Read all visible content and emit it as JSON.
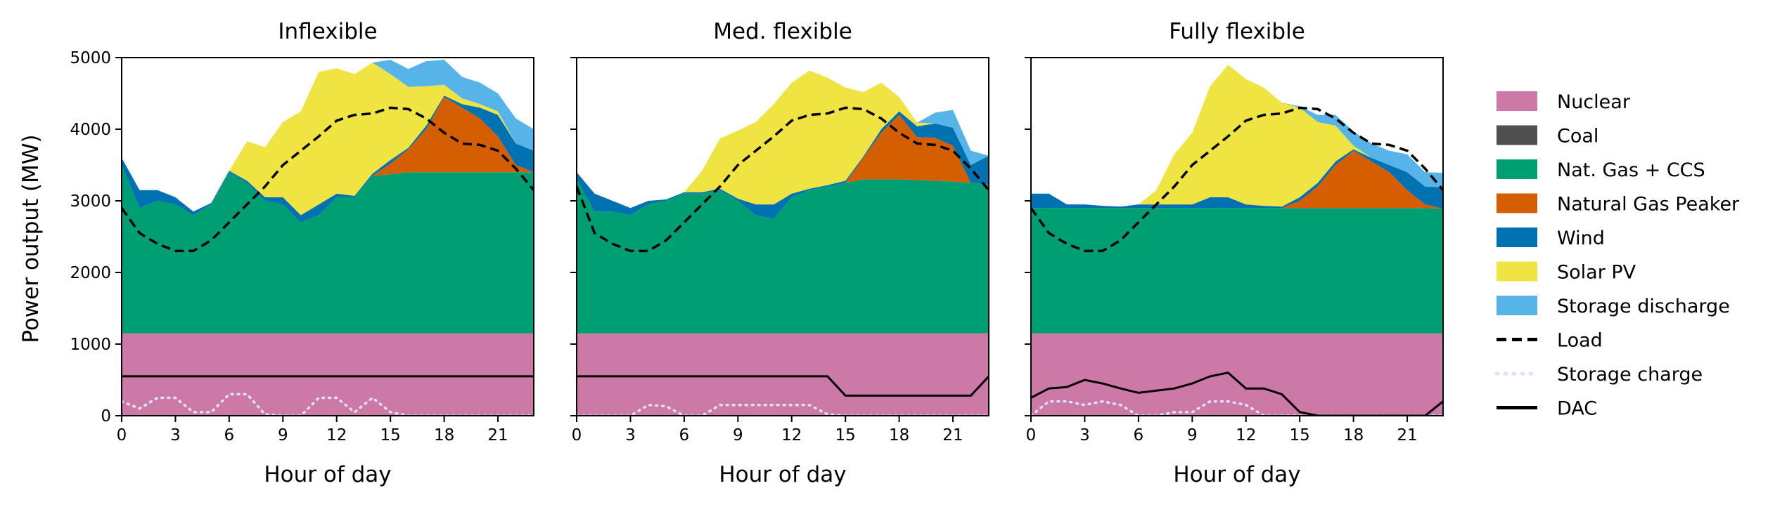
{
  "colors": {
    "nuclear": "#cc79a7",
    "coal": "#505050",
    "gas_ccs": "#009e73",
    "gas_peaker": "#d55e00",
    "wind": "#0072b2",
    "solar": "#f0e442",
    "storage_discharge": "#56b4e9",
    "storage_charge": "#e0e0f8",
    "load": "#000000",
    "dac": "#000000"
  },
  "chart_data": [
    {
      "type": "area",
      "title": "Inflexible",
      "xlabel": "Hour of day",
      "ylabel": "Power output (MW)",
      "xlim": [
        0,
        23
      ],
      "ylim": [
        0,
        5000
      ],
      "xticks": [
        "0",
        "3",
        "6",
        "9",
        "12",
        "15",
        "18",
        "21"
      ],
      "yticks": [
        "0",
        "1000",
        "2000",
        "3000",
        "4000",
        "5000"
      ],
      "x": [
        0,
        1,
        2,
        3,
        4,
        5,
        6,
        7,
        8,
        9,
        10,
        11,
        12,
        13,
        14,
        15,
        16,
        17,
        18,
        19,
        20,
        21,
        22,
        23
      ],
      "series": [
        {
          "name": "Nuclear",
          "values": [
            1150,
            1150,
            1150,
            1150,
            1150,
            1150,
            1150,
            1150,
            1150,
            1150,
            1150,
            1150,
            1150,
            1150,
            1150,
            1150,
            1150,
            1150,
            1150,
            1150,
            1150,
            1150,
            1150,
            1150
          ]
        },
        {
          "name": "Coal",
          "values": [
            0,
            0,
            0,
            0,
            0,
            0,
            0,
            0,
            0,
            0,
            0,
            0,
            0,
            0,
            0,
            0,
            0,
            0,
            0,
            0,
            0,
            0,
            0,
            0
          ]
        },
        {
          "name": "Nat. Gas + CCS",
          "values": [
            2350,
            1750,
            1850,
            1800,
            1650,
            1800,
            2250,
            2100,
            1850,
            1800,
            1550,
            1650,
            1900,
            1900,
            2200,
            2220,
            2250,
            2250,
            2250,
            2250,
            2250,
            2250,
            2250,
            2250
          ]
        },
        {
          "name": "Natural Gas Peaker",
          "values": [
            0,
            0,
            0,
            0,
            0,
            0,
            0,
            0,
            0,
            0,
            0,
            0,
            0,
            0,
            0,
            150,
            320,
            600,
            1050,
            900,
            750,
            500,
            100,
            0
          ]
        },
        {
          "name": "Wind",
          "values": [
            100,
            250,
            150,
            100,
            50,
            20,
            20,
            30,
            50,
            100,
            100,
            150,
            50,
            20,
            30,
            50,
            20,
            50,
            20,
            50,
            150,
            300,
            300,
            300
          ]
        },
        {
          "name": "Solar PV",
          "values": [
            0,
            0,
            0,
            0,
            0,
            0,
            0,
            550,
            700,
            1050,
            1450,
            1850,
            1750,
            1700,
            1550,
            1200,
            850,
            550,
            150,
            80,
            50,
            50,
            0,
            0
          ]
        },
        {
          "name": "Storage discharge",
          "values": [
            0,
            0,
            0,
            0,
            0,
            0,
            0,
            0,
            0,
            0,
            0,
            0,
            0,
            0,
            0,
            200,
            250,
            350,
            350,
            300,
            300,
            250,
            350,
            300
          ]
        }
      ],
      "load": [
        2900,
        2550,
        2400,
        2300,
        2300,
        2450,
        2700,
        2950,
        3200,
        3500,
        3700,
        3900,
        4120,
        4200,
        4220,
        4300,
        4280,
        4150,
        3950,
        3800,
        3780,
        3700,
        3450,
        3150
      ],
      "storage_charge": [
        200,
        100,
        250,
        250,
        50,
        50,
        300,
        300,
        20,
        0,
        0,
        250,
        250,
        50,
        250,
        50,
        0,
        0,
        0,
        0,
        0,
        0,
        0,
        0
      ],
      "dac": [
        550,
        550,
        550,
        550,
        550,
        550,
        550,
        550,
        550,
        550,
        550,
        550,
        550,
        550,
        550,
        550,
        550,
        550,
        550,
        550,
        550,
        550,
        550,
        550
      ]
    },
    {
      "type": "area",
      "title": "Med. flexible",
      "xlabel": "Hour of day",
      "xlim": [
        0,
        23
      ],
      "ylim": [
        0,
        5000
      ],
      "xticks": [
        "0",
        "3",
        "6",
        "9",
        "12",
        "15",
        "18",
        "21"
      ],
      "x": [
        0,
        1,
        2,
        3,
        4,
        5,
        6,
        7,
        8,
        9,
        10,
        11,
        12,
        13,
        14,
        15,
        16,
        17,
        18,
        19,
        20,
        21,
        22,
        23
      ],
      "series": [
        {
          "name": "Nuclear",
          "values": [
            1150,
            1150,
            1150,
            1150,
            1150,
            1150,
            1150,
            1150,
            1150,
            1150,
            1150,
            1150,
            1150,
            1150,
            1150,
            1150,
            1150,
            1150,
            1150,
            1150,
            1150,
            1150,
            1150,
            1150
          ]
        },
        {
          "name": "Coal",
          "values": [
            0,
            0,
            0,
            0,
            0,
            0,
            0,
            0,
            0,
            0,
            0,
            0,
            0,
            0,
            0,
            0,
            0,
            0,
            0,
            0,
            0,
            0,
            0,
            0
          ]
        },
        {
          "name": "Nat. Gas + CCS",
          "values": [
            2150,
            1700,
            1700,
            1650,
            1800,
            1850,
            1950,
            1950,
            2000,
            1850,
            1650,
            1600,
            1900,
            2000,
            2050,
            2100,
            2150,
            2150,
            2150,
            2140,
            2130,
            2120,
            2100,
            2080
          ]
        },
        {
          "name": "Natural Gas Peaker",
          "values": [
            0,
            0,
            0,
            0,
            0,
            0,
            0,
            0,
            0,
            0,
            0,
            0,
            0,
            0,
            0,
            0,
            300,
            650,
            900,
            600,
            600,
            500,
            0,
            0
          ]
        },
        {
          "name": "Wind",
          "values": [
            100,
            250,
            150,
            100,
            50,
            20,
            20,
            20,
            20,
            30,
            150,
            200,
            50,
            20,
            20,
            30,
            20,
            50,
            50,
            150,
            200,
            250,
            250,
            400
          ]
        },
        {
          "name": "Solar PV",
          "values": [
            0,
            0,
            0,
            0,
            0,
            0,
            0,
            300,
            700,
            950,
            1150,
            1400,
            1550,
            1650,
            1500,
            1300,
            900,
            650,
            200,
            50,
            0,
            0,
            0,
            0
          ]
        },
        {
          "name": "Storage discharge",
          "values": [
            0,
            0,
            0,
            0,
            0,
            0,
            0,
            0,
            0,
            0,
            0,
            0,
            0,
            0,
            0,
            0,
            0,
            0,
            0,
            0,
            150,
            250,
            200,
            0
          ]
        }
      ],
      "load": [
        3200,
        2550,
        2400,
        2300,
        2300,
        2450,
        2700,
        2950,
        3200,
        3500,
        3700,
        3900,
        4120,
        4200,
        4220,
        4300,
        4280,
        4150,
        3950,
        3800,
        3780,
        3700,
        3450,
        3150
      ],
      "storage_charge": [
        0,
        0,
        0,
        0,
        150,
        130,
        0,
        0,
        150,
        150,
        150,
        150,
        150,
        150,
        20,
        0,
        0,
        0,
        0,
        0,
        0,
        0,
        0,
        0
      ],
      "dac": [
        550,
        550,
        550,
        550,
        550,
        550,
        550,
        550,
        550,
        550,
        550,
        550,
        550,
        550,
        550,
        280,
        280,
        280,
        280,
        280,
        280,
        280,
        280,
        550
      ]
    },
    {
      "type": "area",
      "title": "Fully flexible",
      "xlabel": "Hour of day",
      "xlim": [
        0,
        23
      ],
      "ylim": [
        0,
        5000
      ],
      "xticks": [
        "0",
        "3",
        "6",
        "9",
        "12",
        "15",
        "18",
        "21"
      ],
      "x": [
        0,
        1,
        2,
        3,
        4,
        5,
        6,
        7,
        8,
        9,
        10,
        11,
        12,
        13,
        14,
        15,
        16,
        17,
        18,
        19,
        20,
        21,
        22,
        23
      ],
      "series": [
        {
          "name": "Nuclear",
          "values": [
            1150,
            1150,
            1150,
            1150,
            1150,
            1150,
            1150,
            1150,
            1150,
            1150,
            1150,
            1150,
            1150,
            1150,
            1150,
            1150,
            1150,
            1150,
            1150,
            1150,
            1150,
            1150,
            1150,
            1150
          ]
        },
        {
          "name": "Coal",
          "values": [
            0,
            0,
            0,
            0,
            0,
            0,
            0,
            0,
            0,
            0,
            0,
            0,
            0,
            0,
            0,
            0,
            0,
            0,
            0,
            0,
            0,
            0,
            0,
            0
          ]
        },
        {
          "name": "Nat. Gas + CCS",
          "values": [
            1750,
            1750,
            1750,
            1750,
            1750,
            1750,
            1750,
            1750,
            1750,
            1750,
            1750,
            1750,
            1750,
            1750,
            1750,
            1750,
            1750,
            1750,
            1750,
            1750,
            1750,
            1750,
            1750,
            1740
          ]
        },
        {
          "name": "Natural Gas Peaker",
          "values": [
            0,
            0,
            0,
            0,
            0,
            0,
            0,
            0,
            0,
            0,
            0,
            0,
            0,
            0,
            0,
            100,
            300,
            600,
            800,
            650,
            500,
            250,
            50,
            0
          ]
        },
        {
          "name": "Wind",
          "values": [
            200,
            200,
            50,
            50,
            30,
            20,
            50,
            50,
            50,
            50,
            150,
            150,
            50,
            30,
            20,
            50,
            50,
            50,
            20,
            50,
            100,
            250,
            250,
            300
          ]
        },
        {
          "name": "Solar PV",
          "values": [
            0,
            0,
            0,
            0,
            0,
            0,
            0,
            200,
            700,
            1000,
            1550,
            1850,
            1750,
            1650,
            1450,
            1250,
            850,
            500,
            50,
            0,
            0,
            0,
            0,
            0
          ]
        },
        {
          "name": "Storage discharge",
          "values": [
            0,
            0,
            0,
            0,
            0,
            0,
            0,
            0,
            0,
            0,
            0,
            0,
            0,
            0,
            0,
            20,
            100,
            150,
            200,
            200,
            200,
            250,
            200,
            200
          ]
        }
      ],
      "load": [
        2900,
        2550,
        2400,
        2300,
        2300,
        2450,
        2700,
        2950,
        3200,
        3500,
        3700,
        3900,
        4120,
        4200,
        4220,
        4300,
        4280,
        4150,
        3950,
        3800,
        3780,
        3700,
        3450,
        3150
      ],
      "storage_charge": [
        0,
        200,
        200,
        150,
        200,
        150,
        0,
        0,
        50,
        50,
        200,
        200,
        150,
        0,
        0,
        0,
        0,
        0,
        0,
        0,
        0,
        0,
        0,
        0
      ],
      "dac": [
        250,
        380,
        400,
        500,
        450,
        380,
        320,
        350,
        380,
        450,
        550,
        600,
        380,
        380,
        300,
        50,
        0,
        0,
        0,
        0,
        0,
        0,
        0,
        200
      ]
    }
  ],
  "legend": {
    "position": "right",
    "items": [
      {
        "label": "Nuclear",
        "kind": "patch",
        "color": "#cc79a7"
      },
      {
        "label": "Coal",
        "kind": "patch",
        "color": "#505050"
      },
      {
        "label": "Nat. Gas + CCS",
        "kind": "patch",
        "color": "#009e73"
      },
      {
        "label": "Natural Gas Peaker",
        "kind": "patch",
        "color": "#d55e00"
      },
      {
        "label": "Wind",
        "kind": "patch",
        "color": "#0072b2"
      },
      {
        "label": "Solar PV",
        "kind": "patch",
        "color": "#f0e442"
      },
      {
        "label": "Storage discharge",
        "kind": "patch",
        "color": "#56b4e9"
      },
      {
        "label": "Load",
        "kind": "dashed",
        "color": "#000000"
      },
      {
        "label": "Storage charge",
        "kind": "dotted",
        "color": "#e0e0f8"
      },
      {
        "label": "DAC",
        "kind": "solid",
        "color": "#000000"
      }
    ]
  }
}
